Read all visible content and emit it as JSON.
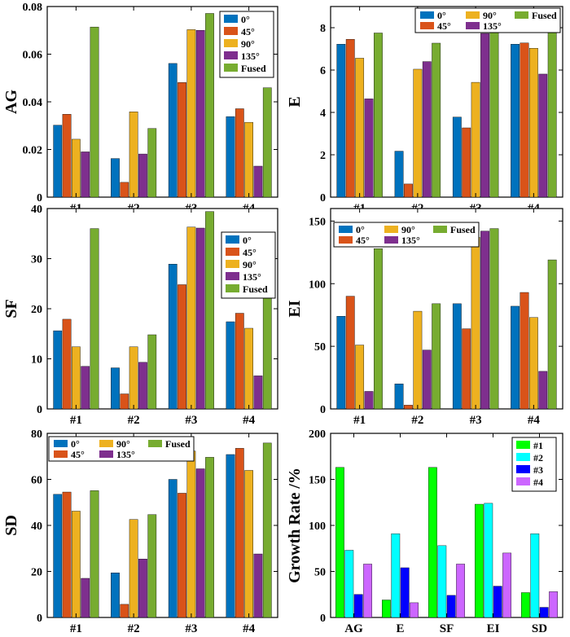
{
  "colors": {
    "0deg": "#0072BD",
    "45deg": "#D95319",
    "90deg": "#EDB120",
    "135deg": "#7E2F8E",
    "fused": "#77AC30",
    "g1": "#00FF00",
    "g2": "#00FFFF",
    "g3": "#0000FF",
    "g4": "#CC66FF"
  },
  "chart_data": [
    {
      "type": "bar",
      "ylabel": "AG",
      "categories": [
        "#1",
        "#2",
        "#3",
        "#4"
      ],
      "ylim": [
        0,
        0.08
      ],
      "yticks": [
        0,
        0.02,
        0.04,
        0.06,
        0.08
      ],
      "ytick_labels": [
        "0",
        "0.02",
        "0.04",
        "0.06",
        "0.08"
      ],
      "legend_position": "top-right",
      "legend_layout": "single-column",
      "series": [
        {
          "name": "0°",
          "color_key": "0deg",
          "values": [
            0.0302,
            0.0162,
            0.0561,
            0.0338
          ]
        },
        {
          "name": "45°",
          "color_key": "45deg",
          "values": [
            0.0348,
            0.0062,
            0.0481,
            0.0371
          ]
        },
        {
          "name": "90°",
          "color_key": "90deg",
          "values": [
            0.0243,
            0.0358,
            0.0703,
            0.0314
          ]
        },
        {
          "name": "135°",
          "color_key": "135deg",
          "values": [
            0.019,
            0.0181,
            0.07,
            0.013
          ]
        },
        {
          "name": "Fused",
          "color_key": "fused",
          "values": [
            0.0714,
            0.0288,
            0.0771,
            0.0459
          ]
        }
      ]
    },
    {
      "type": "bar",
      "ylabel": "E",
      "categories": [
        "#1",
        "#2",
        "#3",
        "#4"
      ],
      "ylim": [
        0,
        9
      ],
      "yticks": [
        0,
        2,
        4,
        6,
        8
      ],
      "ytick_labels": [
        "0",
        "2",
        "4",
        "6",
        "8"
      ],
      "legend_position": "top",
      "legend_layout": "three-column",
      "series": [
        {
          "name": "0°",
          "color_key": "0deg",
          "values": [
            7.22,
            2.17,
            3.78,
            7.22
          ]
        },
        {
          "name": "45°",
          "color_key": "45deg",
          "values": [
            7.45,
            0.62,
            3.27,
            7.28
          ]
        },
        {
          "name": "90°",
          "color_key": "90deg",
          "values": [
            6.56,
            6.04,
            5.42,
            7.03
          ]
        },
        {
          "name": "135°",
          "color_key": "135deg",
          "values": [
            4.64,
            6.4,
            7.73,
            5.81
          ]
        },
        {
          "name": "Fused",
          "color_key": "fused",
          "values": [
            7.75,
            7.27,
            7.82,
            7.95
          ]
        }
      ]
    },
    {
      "type": "bar",
      "ylabel": "SF",
      "categories": [
        "#1",
        "#2",
        "#3",
        "#4"
      ],
      "ylim": [
        0,
        40
      ],
      "yticks": [
        0,
        10,
        20,
        30,
        40
      ],
      "ytick_labels": [
        "0",
        "10",
        "20",
        "30",
        "40"
      ],
      "legend_position": "top-right",
      "legend_layout": "single-column",
      "series": [
        {
          "name": "0°",
          "color_key": "0deg",
          "values": [
            15.6,
            8.2,
            28.9,
            17.4
          ]
        },
        {
          "name": "45°",
          "color_key": "45deg",
          "values": [
            17.9,
            3.0,
            24.8,
            19.1
          ]
        },
        {
          "name": "90°",
          "color_key": "90deg",
          "values": [
            12.4,
            12.4,
            36.3,
            16.1
          ]
        },
        {
          "name": "135°",
          "color_key": "135deg",
          "values": [
            8.5,
            9.3,
            36.1,
            6.6
          ]
        },
        {
          "name": "Fused",
          "color_key": "fused",
          "values": [
            36.0,
            14.8,
            39.4,
            23.5
          ]
        }
      ]
    },
    {
      "type": "bar",
      "ylabel": "EI",
      "categories": [
        "#1",
        "#2",
        "#3",
        "#4"
      ],
      "ylim": [
        0,
        160
      ],
      "yticks": [
        0,
        50,
        100,
        150
      ],
      "ytick_labels": [
        "0",
        "50",
        "100",
        "150"
      ],
      "legend_position": "top",
      "legend_layout": "three-column",
      "series": [
        {
          "name": "0°",
          "color_key": "0deg",
          "values": [
            74,
            20,
            84,
            82
          ]
        },
        {
          "name": "45°",
          "color_key": "45deg",
          "values": [
            90,
            3,
            64,
            93
          ]
        },
        {
          "name": "90°",
          "color_key": "90deg",
          "values": [
            51,
            78,
            137,
            73
          ]
        },
        {
          "name": "135°",
          "color_key": "135deg",
          "values": [
            14,
            47,
            142,
            30
          ]
        },
        {
          "name": "Fused",
          "color_key": "fused",
          "values": [
            128,
            84,
            144,
            119
          ]
        }
      ]
    },
    {
      "type": "bar",
      "ylabel": "SD",
      "categories": [
        "#1",
        "#2",
        "#3",
        "#4"
      ],
      "ylim": [
        0,
        80
      ],
      "yticks": [
        0,
        20,
        40,
        60,
        80
      ],
      "ytick_labels": [
        "0",
        "20",
        "40",
        "60",
        "80"
      ],
      "legend_position": "top",
      "legend_layout": "three-column",
      "series": [
        {
          "name": "0°",
          "color_key": "0deg",
          "values": [
            53.5,
            19.4,
            60.0,
            70.8
          ]
        },
        {
          "name": "45°",
          "color_key": "45deg",
          "values": [
            54.5,
            5.7,
            54.0,
            73.5
          ]
        },
        {
          "name": "90°",
          "color_key": "90deg",
          "values": [
            46.2,
            42.6,
            72.3,
            63.9
          ]
        },
        {
          "name": "135°",
          "color_key": "135deg",
          "values": [
            17.0,
            25.4,
            64.6,
            27.6
          ]
        },
        {
          "name": "Fused",
          "color_key": "fused",
          "values": [
            55.1,
            44.7,
            69.6,
            75.8
          ]
        }
      ]
    },
    {
      "type": "bar",
      "ylabel": "Growth Rate /%",
      "categories": [
        "AG",
        "E",
        "SF",
        "EI",
        "SD"
      ],
      "ylim": [
        0,
        200
      ],
      "yticks": [
        0,
        50,
        100,
        150,
        200
      ],
      "ytick_labels": [
        "0",
        "50",
        "100",
        "150",
        "200"
      ],
      "legend_position": "top-right",
      "legend_layout": "single-column",
      "series": [
        {
          "name": "#1",
          "color_key": "g1",
          "values": [
            163,
            19,
            163,
            123,
            27
          ]
        },
        {
          "name": "#2",
          "color_key": "g2",
          "values": [
            73,
            91,
            78,
            124,
            91
          ]
        },
        {
          "name": "#3",
          "color_key": "g3",
          "values": [
            25,
            54,
            24,
            34,
            11
          ]
        },
        {
          "name": "#4",
          "color_key": "g4",
          "values": [
            58,
            16,
            58,
            70,
            28
          ]
        }
      ]
    }
  ]
}
